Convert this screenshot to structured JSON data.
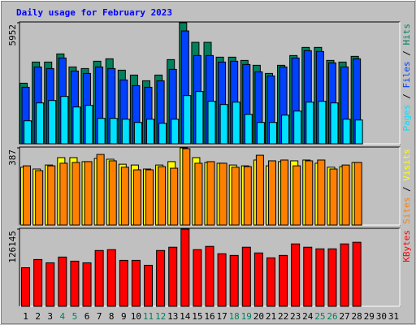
{
  "chart_data": [
    {
      "type": "bar",
      "title": "Daily usage for February 2023",
      "categories": [
        "1",
        "2",
        "3",
        "4",
        "5",
        "6",
        "7",
        "8",
        "9",
        "10",
        "11",
        "12",
        "13",
        "14",
        "15",
        "16",
        "17",
        "18",
        "19",
        "20",
        "21",
        "22",
        "23",
        "24",
        "25",
        "26",
        "27",
        "28",
        "29",
        "30",
        "31"
      ],
      "category_colors": [
        "#000000",
        "#000000",
        "#000000",
        "#00805c",
        "#00805c",
        "#000000",
        "#000000",
        "#000000",
        "#000000",
        "#000000",
        "#00805c",
        "#00805c",
        "#000000",
        "#000000",
        "#000000",
        "#000000",
        "#000000",
        "#00805c",
        "#00805c",
        "#000000",
        "#000000",
        "#000000",
        "#000000",
        "#000000",
        "#00805c",
        "#00805c",
        "#000000",
        "#000000",
        "#000000",
        "#000000",
        "#000000"
      ],
      "legend_separator": " / ",
      "ylim": [
        0,
        5952
      ],
      "yticks": [
        5952
      ],
      "series": [
        {
          "name": "Pages",
          "color": "#00e0ff",
          "values": [
            1130,
            2010,
            2130,
            2330,
            1810,
            1890,
            1250,
            1250,
            1210,
            1050,
            1210,
            1010,
            1210,
            2370,
            2570,
            2090,
            1930,
            2050,
            1450,
            1050,
            1050,
            1410,
            1610,
            2050,
            2090,
            2010,
            1210,
            1170,
            null,
            null,
            null
          ]
        },
        {
          "name": "Files",
          "color": "#0040ff",
          "values": [
            2780,
            3780,
            3700,
            4220,
            3580,
            3460,
            3780,
            3700,
            3140,
            2860,
            2780,
            3100,
            3660,
            5550,
            4340,
            4340,
            4020,
            4060,
            3900,
            3540,
            3340,
            3780,
            4220,
            4580,
            4540,
            3980,
            3780,
            4180,
            null,
            null,
            null
          ]
        },
        {
          "name": "Hits",
          "color": "#00805c",
          "values": [
            2980,
            4020,
            4020,
            4420,
            3780,
            3700,
            4060,
            4180,
            3620,
            3380,
            3100,
            3380,
            4140,
            5952,
            4990,
            4990,
            4260,
            4260,
            4100,
            3860,
            3460,
            3860,
            4340,
            4740,
            4740,
            4100,
            4020,
            4300,
            null,
            null,
            null
          ]
        }
      ]
    },
    {
      "type": "bar",
      "ylim": [
        0,
        387
      ],
      "yticks": [
        387
      ],
      "series": [
        {
          "name": "Sites",
          "color": "#ff8000",
          "values": [
            297,
            273,
            297,
            310,
            314,
            318,
            354,
            322,
            290,
            277,
            277,
            293,
            285,
            383,
            310,
            318,
            310,
            290,
            293,
            350,
            322,
            326,
            297,
            322,
            326,
            281,
            301,
            314,
            null,
            null,
            null
          ]
        },
        {
          "name": "Visits",
          "color": "#ffff00",
          "values": [
            290,
            281,
            301,
            338,
            338,
            318,
            334,
            330,
            305,
            301,
            281,
            301,
            318,
            387,
            338,
            314,
            310,
            301,
            297,
            326,
            297,
            318,
            322,
            326,
            310,
            290,
            293,
            314,
            null,
            null,
            null
          ]
        }
      ]
    },
    {
      "type": "bar",
      "ylim": [
        0,
        126145
      ],
      "yticks": [
        126145
      ],
      "series": [
        {
          "name": "KBytes",
          "color": "#ff0000",
          "values": [
            63070,
            76490,
            71120,
            80520,
            73810,
            71120,
            91250,
            92600,
            75150,
            75150,
            67100,
            91250,
            96620,
            126145,
            92600,
            97970,
            85890,
            83200,
            96620,
            87230,
            79180,
            83200,
            101990,
            96620,
            93940,
            93940,
            101990,
            104680,
            null,
            null,
            null
          ]
        }
      ]
    }
  ]
}
